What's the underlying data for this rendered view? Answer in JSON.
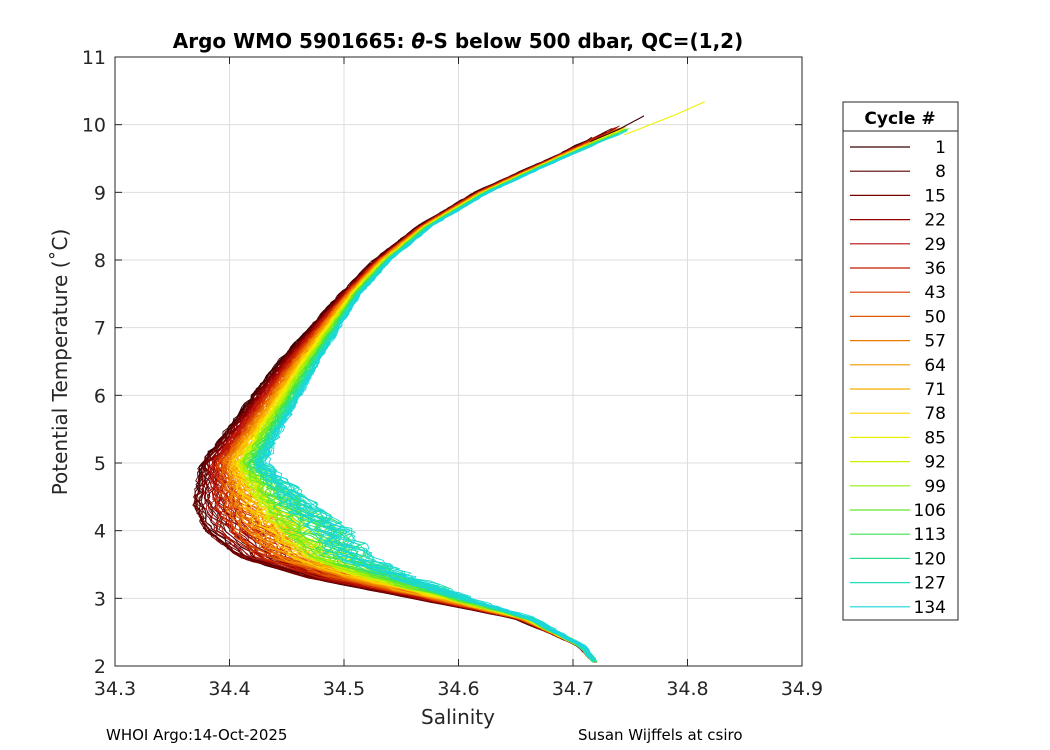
{
  "chart_data": {
    "type": "line",
    "title": "Argo WMO 5901665: θ-S below 500 dbar,  QC=(1,2)",
    "title_parts": {
      "pre": "Argo WMO 5901665: ",
      "theta": "θ",
      "post": "-S below 500 dbar,  QC=(1,2)"
    },
    "xlabel": "Salinity",
    "ylabel": "Potential Temperature (˚C)",
    "xlim": [
      34.3,
      34.9
    ],
    "ylim": [
      2,
      11
    ],
    "xticks": [
      "34.3",
      "34.4",
      "34.5",
      "34.6",
      "34.7",
      "34.8",
      "34.9"
    ],
    "yticks": [
      "2",
      "3",
      "4",
      "5",
      "6",
      "7",
      "8",
      "9",
      "10",
      "11"
    ],
    "grid": true,
    "legend": {
      "title": "Cycle #",
      "placement": "outside-right",
      "entries": [
        "1",
        "8",
        "15",
        "22",
        "29",
        "36",
        "43",
        "50",
        "57",
        "64",
        "71",
        "78",
        "85",
        "92",
        "99",
        "106",
        "113",
        "120",
        "127",
        "134"
      ],
      "colors": [
        "#3a0000",
        "#5a0000",
        "#7a0000",
        "#960000",
        "#b01010",
        "#c41c00",
        "#d63a00",
        "#e25a00",
        "#ec7a00",
        "#f29400",
        "#f7ae00",
        "#ffd400",
        "#eef000",
        "#c8f000",
        "#96ee10",
        "#64e830",
        "#3ae458",
        "#28e08c",
        "#20dcbc",
        "#1ad6dc"
      ]
    },
    "envelope": {
      "theta": [
        2.0,
        2.3,
        2.7,
        3.0,
        3.3,
        3.6,
        4.0,
        4.4,
        5.0,
        5.5,
        6.0,
        6.5,
        7.0,
        7.5,
        8.0,
        8.5,
        9.0,
        9.5,
        10.0
      ],
      "salinity_early": [
        34.722,
        34.705,
        34.65,
        34.56,
        34.47,
        34.41,
        34.38,
        34.37,
        34.375,
        34.398,
        34.42,
        34.443,
        34.47,
        34.497,
        34.527,
        34.565,
        34.615,
        34.68,
        34.74
      ],
      "salinity_late": [
        34.722,
        34.708,
        34.665,
        34.61,
        34.56,
        34.52,
        34.5,
        34.47,
        34.43,
        34.445,
        34.462,
        34.478,
        34.496,
        34.514,
        34.54,
        34.576,
        34.626,
        34.69,
        34.76
      ]
    },
    "top_extensions": [
      {
        "cycle": "1",
        "salinity": [
          34.715,
          34.74,
          34.762
        ],
        "theta": [
          9.75,
          9.93,
          10.13
        ]
      },
      {
        "cycle": "85",
        "salinity": [
          34.745,
          34.79,
          34.815
        ],
        "theta": [
          9.85,
          10.15,
          10.34
        ]
      }
    ]
  },
  "footer": {
    "left": "WHOI Argo:14-Oct-2025",
    "right": "Susan Wijffels at csiro"
  }
}
